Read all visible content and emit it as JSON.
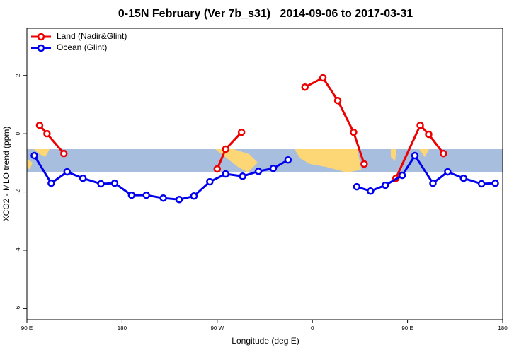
{
  "chart_data": {
    "type": "line",
    "title": "0-15N February (Ver 7b_s31)   2014-09-06 to 2017-03-31",
    "x_label": "Longitude (deg E)",
    "y_label": "XCO2 - MLO trend (ppm)",
    "xlim": [
      90,
      540
    ],
    "ylim": [
      -6.38,
      3.62
    ],
    "xticks": [
      {
        "value": 90,
        "label": "90 E"
      },
      {
        "value": 180,
        "label": "180"
      },
      {
        "value": 270,
        "label": "90 W"
      },
      {
        "value": 360,
        "label": "0"
      },
      {
        "value": 450,
        "label": "90 E"
      },
      {
        "value": 540,
        "label": "180"
      }
    ],
    "yticks": [
      2,
      0,
      -2,
      -4,
      -6
    ],
    "legend": "topleft",
    "series": [
      {
        "name": "Land (Nadir&Glint)",
        "color": "#ee0000",
        "x": [
          102,
          109,
          125,
          null,
          270,
          278,
          293,
          null,
          353,
          370,
          384,
          399,
          409,
          null,
          439,
          462,
          470,
          484
        ],
        "values": [
          0.29,
          0.0,
          -0.68,
          null,
          -1.21,
          -0.53,
          0.05,
          null,
          1.6,
          1.92,
          1.14,
          0.05,
          -1.04,
          null,
          -1.53,
          0.29,
          -0.02,
          -0.68
        ]
      },
      {
        "name": "Ocean (Glint)",
        "color": "#0000ee",
        "x": [
          97,
          113,
          128,
          143,
          160,
          173,
          189,
          203,
          219,
          234,
          248,
          263,
          278,
          294,
          309,
          323,
          337,
          null,
          402,
          415,
          429,
          445,
          457,
          474,
          488,
          503,
          520,
          533
        ],
        "values": [
          -0.75,
          -1.7,
          -1.31,
          -1.53,
          -1.72,
          -1.7,
          -2.11,
          -2.11,
          -2.21,
          -2.26,
          -2.14,
          -1.65,
          -1.38,
          -1.46,
          -1.29,
          -1.19,
          -0.9,
          null,
          -1.82,
          -1.97,
          -1.77,
          -1.43,
          -0.75,
          -1.7,
          -1.31,
          -1.53,
          -1.72,
          -1.7
        ]
      }
    ]
  }
}
